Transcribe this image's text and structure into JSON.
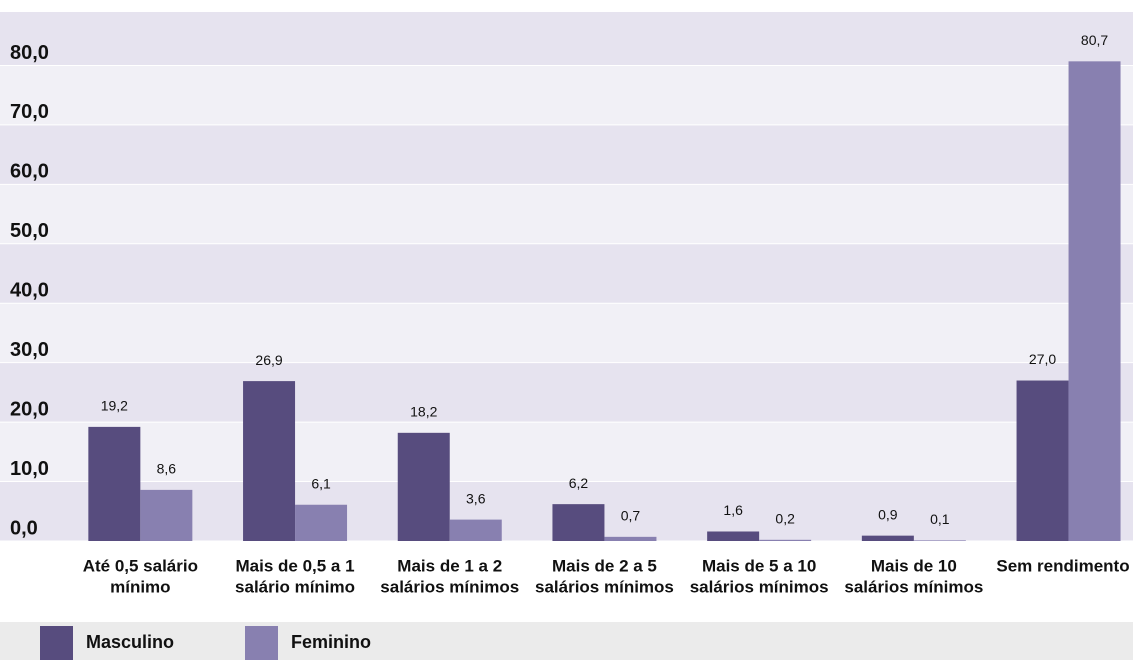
{
  "chart_data": {
    "type": "bar",
    "categories": [
      [
        "Até 0,5 salário",
        "mínimo"
      ],
      [
        "Mais de 0,5 a 1",
        "salário mínimo"
      ],
      [
        "Mais de 1 a 2",
        "salários mínimos"
      ],
      [
        "Mais de 2 a 5",
        "salários mínimos"
      ],
      [
        "Mais de 5 a 10",
        "salários mínimos"
      ],
      [
        "Mais de 10",
        "salários mínimos"
      ],
      [
        "Sem rendimento"
      ]
    ],
    "series": [
      {
        "name": "Masculino",
        "color": "#574c7e",
        "values": [
          19.2,
          26.9,
          18.2,
          6.2,
          1.6,
          0.9,
          27.0
        ],
        "value_labels": [
          "19,2",
          "26,9",
          "18,2",
          "6,2",
          "1,6",
          "0,9",
          "27,0"
        ]
      },
      {
        "name": "Feminino",
        "color": "#8880b0",
        "values": [
          8.6,
          6.1,
          3.6,
          0.7,
          0.2,
          0.1,
          80.7
        ],
        "value_labels": [
          "8,6",
          "6,1",
          "3,6",
          "0,7",
          "0,2",
          "0,1",
          "80,7"
        ]
      }
    ],
    "ylim": [
      0,
      89
    ],
    "yticks": [
      {
        "value": 0,
        "label": "0,0"
      },
      {
        "value": 10,
        "label": "10,0"
      },
      {
        "value": 20,
        "label": "20,0"
      },
      {
        "value": 30,
        "label": "30,0"
      },
      {
        "value": 40,
        "label": "40,0"
      },
      {
        "value": 50,
        "label": "50,0"
      },
      {
        "value": 60,
        "label": "60,0"
      },
      {
        "value": 70,
        "label": "70,0"
      },
      {
        "value": 80,
        "label": "80,0"
      }
    ],
    "grid": true,
    "legend": "bottom"
  }
}
